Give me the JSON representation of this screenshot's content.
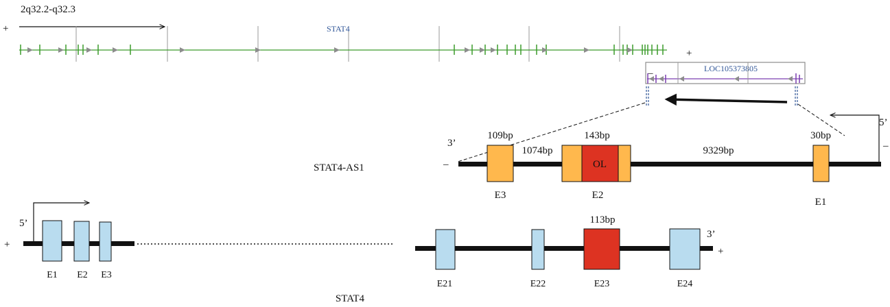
{
  "colors": {
    "stat4_track": "#3a9a2a",
    "loc_track": "#7a3db0",
    "gene_label": "#2f5597",
    "gray": "#8c8c8c",
    "exon_orange": "#ffb84d",
    "exon_red": "#dd3322",
    "exon_blue": "#b9dcef",
    "black": "#111111"
  },
  "browser": {
    "locus": "2q32.2-q32.3",
    "plus_strand": "+",
    "minus_strand": "–",
    "loc_plus": "+",
    "stat4_label": "STAT4",
    "loc_label": "LOC105373805"
  },
  "as1": {
    "name": "STAT4-AS1",
    "three_prime": "3’",
    "five_prime": "5’",
    "left_strand": "–",
    "right_strand": "–",
    "e3_len": "109bp",
    "intron1_len": "1074bp",
    "e2_len": "143bp",
    "intron2_len": "9329bp",
    "e1_len": "30bp",
    "overlap_label": "OL",
    "exons": [
      "E3",
      "E2",
      "E1"
    ]
  },
  "stat4": {
    "name": "STAT4",
    "five_prime": "5’",
    "three_prime": "3’",
    "left_strand": "+",
    "right_strand": "+",
    "e23_len": "113bp",
    "exons": [
      "E1",
      "E2",
      "E3",
      "E21",
      "E22",
      "E23",
      "E24"
    ]
  }
}
